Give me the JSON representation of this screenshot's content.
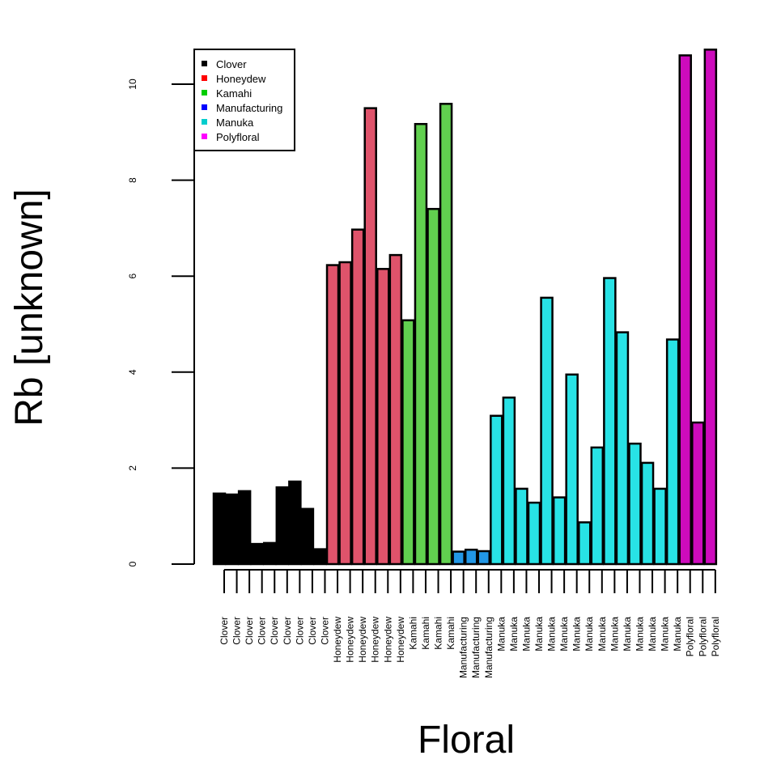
{
  "chart_data": {
    "type": "bar",
    "xlabel": "Floral",
    "ylabel": "Rb [unknown]",
    "ylim": [
      0,
      10.7
    ],
    "yticks": [
      0,
      2,
      4,
      6,
      8,
      10
    ],
    "categories": [
      "Clover",
      "Clover",
      "Clover",
      "Clover",
      "Clover",
      "Clover",
      "Clover",
      "Clover",
      "Clover",
      "Honeydew",
      "Honeydew",
      "Honeydew",
      "Honeydew",
      "Honeydew",
      "Honeydew",
      "Kamahi",
      "Kamahi",
      "Kamahi",
      "Kamahi",
      "Manufacturing",
      "Manufacturing",
      "Manufacturing",
      "Manuka",
      "Manuka",
      "Manuka",
      "Manuka",
      "Manuka",
      "Manuka",
      "Manuka",
      "Manuka",
      "Manuka",
      "Manuka",
      "Manuka",
      "Manuka",
      "Manuka",
      "Manuka",
      "Manuka",
      "Polyfloral",
      "Polyfloral",
      "Polyfloral"
    ],
    "values": [
      1.47,
      1.45,
      1.52,
      0.42,
      0.44,
      1.6,
      1.72,
      1.15,
      0.31,
      6.23,
      6.29,
      6.97,
      9.5,
      6.15,
      6.44,
      5.08,
      9.17,
      7.4,
      9.59,
      0.26,
      0.3,
      0.27,
      3.09,
      3.47,
      1.57,
      1.28,
      5.55,
      1.39,
      3.95,
      0.87,
      2.43,
      5.96,
      4.83,
      2.51,
      2.11,
      1.57,
      4.68,
      10.6,
      2.95,
      10.72
    ],
    "bar_colors": [
      "#000000",
      "#000000",
      "#000000",
      "#000000",
      "#000000",
      "#000000",
      "#000000",
      "#000000",
      "#000000",
      "#DF536B",
      "#DF536B",
      "#DF536B",
      "#DF536B",
      "#DF536B",
      "#DF536B",
      "#61D04F",
      "#61D04F",
      "#61D04F",
      "#61D04F",
      "#2297E6",
      "#2297E6",
      "#2297E6",
      "#28E2E5",
      "#28E2E5",
      "#28E2E5",
      "#28E2E5",
      "#28E2E5",
      "#28E2E5",
      "#28E2E5",
      "#28E2E5",
      "#28E2E5",
      "#28E2E5",
      "#28E2E5",
      "#28E2E5",
      "#28E2E5",
      "#28E2E5",
      "#28E2E5",
      "#CD0BBC",
      "#CD0BBC",
      "#CD0BBC"
    ],
    "legend": {
      "position": "top-left",
      "entries": [
        {
          "label": "Clover",
          "color": "#000000"
        },
        {
          "label": "Honeydew",
          "color": "#FF0000"
        },
        {
          "label": "Kamahi",
          "color": "#00CD00"
        },
        {
          "label": "Manufacturing",
          "color": "#0000FF"
        },
        {
          "label": "Manuka",
          "color": "#00CDCD"
        },
        {
          "label": "Polyfloral",
          "color": "#FF00FF"
        }
      ]
    },
    "grid": false
  }
}
